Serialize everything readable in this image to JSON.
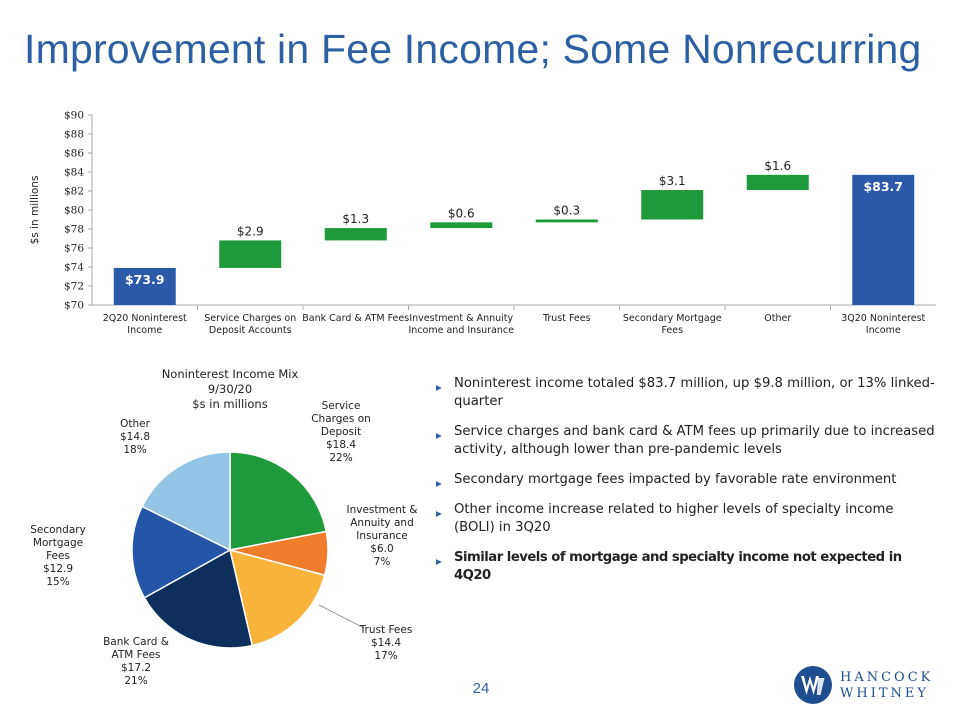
{
  "title": "Improvement in Fee Income; Some Nonrecurring",
  "colors": {
    "title": "#2e5fa3",
    "endpoint_bar": "#2a5aa8",
    "change_bar": "#1f9a3a",
    "axis": "#aaaaaa",
    "logo": "#1d4e8f"
  },
  "chart_data": [
    {
      "type": "waterfall",
      "title": "",
      "ylabel": "$s in millions",
      "ylim": [
        70,
        90
      ],
      "ytick_step": 2,
      "ytick_labels": [
        "$70",
        "$72",
        "$74",
        "$76",
        "$78",
        "$80",
        "$82",
        "$84",
        "$86",
        "$88",
        "$90"
      ],
      "grid": false,
      "categories": [
        [
          "2Q20 Noninterest",
          "Income"
        ],
        [
          "Service Charges on",
          "Deposit Accounts"
        ],
        [
          "Bank Card & ATM Fees"
        ],
        [
          "Investment & Annuity",
          "Income and Insurance"
        ],
        [
          "Trust Fees"
        ],
        [
          "Secondary Mortgage",
          "Fees"
        ],
        [
          "Other"
        ],
        [
          "3Q20 Noninterest",
          "Income"
        ]
      ],
      "bars": [
        {
          "kind": "total",
          "start": 70,
          "end": 73.9,
          "label": "$73.9"
        },
        {
          "kind": "increase",
          "start": 73.9,
          "end": 76.8,
          "label": "$2.9"
        },
        {
          "kind": "increase",
          "start": 76.8,
          "end": 78.1,
          "label": "$1.3"
        },
        {
          "kind": "increase",
          "start": 78.1,
          "end": 78.7,
          "label": "$0.6"
        },
        {
          "kind": "increase",
          "start": 78.7,
          "end": 79.0,
          "label": "$0.3"
        },
        {
          "kind": "increase",
          "start": 79.0,
          "end": 82.1,
          "label": "$3.1"
        },
        {
          "kind": "increase",
          "start": 82.1,
          "end": 83.7,
          "label": "$1.6"
        },
        {
          "kind": "total",
          "start": 70,
          "end": 83.7,
          "label": "$83.7"
        }
      ]
    },
    {
      "type": "pie",
      "title_lines": [
        "Noninterest Income Mix",
        "9/30/20",
        "$s in millions"
      ],
      "slices": [
        {
          "name_lines": [
            "Service",
            "Charges on",
            "Deposit"
          ],
          "value": 18.4,
          "value_label": "$18.4",
          "pct": "22%",
          "color": "#1f9a3a"
        },
        {
          "name_lines": [
            "Investment &",
            "Annuity and",
            "Insurance"
          ],
          "value": 6.0,
          "value_label": "$6.0",
          "pct": "7%",
          "color": "#f07d2c"
        },
        {
          "name_lines": [
            "Trust Fees"
          ],
          "value": 14.4,
          "value_label": "$14.4",
          "pct": "17%",
          "color": "#f8b43a"
        },
        {
          "name_lines": [
            "Bank Card &",
            "ATM Fees"
          ],
          "value": 17.2,
          "value_label": "$17.2",
          "pct": "21%",
          "color": "#0e2e5e"
        },
        {
          "name_lines": [
            "Secondary",
            "Mortgage",
            "Fees"
          ],
          "value": 12.9,
          "value_label": "$12.9",
          "pct": "15%",
          "color": "#2356a6"
        },
        {
          "name_lines": [
            "Other"
          ],
          "value": 14.8,
          "value_label": "$14.8",
          "pct": "18%",
          "color": "#93c5e6"
        }
      ]
    }
  ],
  "bullets": [
    "Noninterest income totaled $83.7 million, up $9.8 million, or 13% linked-quarter",
    "Service charges and bank card & ATM fees up primarily due to increased activity, although lower than pre-pandemic levels",
    "Secondary mortgage fees impacted by favorable rate environment",
    "Other income increase related to higher levels of specialty income (BOLI) in 3Q20",
    "Similar levels of mortgage and specialty income not expected in 4Q20"
  ],
  "page_number": "24",
  "logo": {
    "mark_icon": "hancock-whitney-w-icon",
    "line1": "HANCOCK",
    "line2": "WHITNEY"
  }
}
